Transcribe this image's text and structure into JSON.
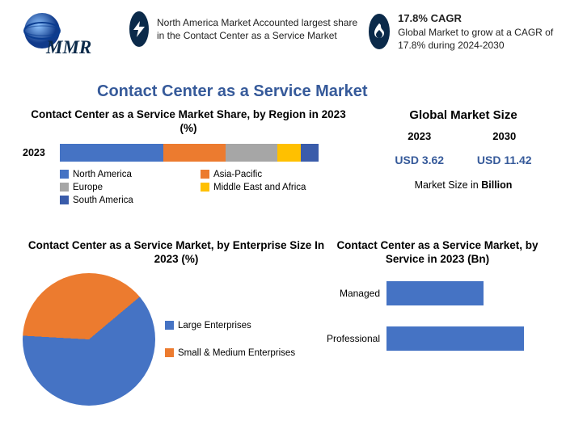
{
  "colors": {
    "brand_blue": "#365a9a",
    "badge_bg": "#0b2a4a",
    "series_blue": "#4573c4",
    "series_orange": "#ec7b2f",
    "series_gray": "#a6a6a6",
    "series_yellow": "#ffc000",
    "series_darkblue": "#4472c4",
    "text": "#222222",
    "bg": "#ffffff"
  },
  "logo": {
    "text": "MMR"
  },
  "insights": {
    "left": {
      "text": "North America Market Accounted largest share in the Contact Center as a Service Market"
    },
    "right": {
      "head": "17.8% CAGR",
      "text": "Global Market to grow at a CAGR of 17.8% during 2024-2030"
    }
  },
  "title": "Contact Center as a Service Market",
  "region": {
    "title": "Contact Center as a Service Market Share, by Region in 2023 (%)",
    "year_label": "2023",
    "segments": [
      {
        "label": "North America",
        "pct": 40,
        "color": "#4573c4"
      },
      {
        "label": "Asia-Pacific",
        "pct": 24,
        "color": "#ec7b2f"
      },
      {
        "label": "Europe",
        "pct": 20,
        "color": "#a6a6a6"
      },
      {
        "label": "Middle East and Africa",
        "pct": 9,
        "color": "#ffc000"
      },
      {
        "label": "South America",
        "pct": 7,
        "color": "#3a5caa"
      }
    ]
  },
  "gms": {
    "title": "Global Market Size",
    "years": [
      "2023",
      "2030"
    ],
    "values": [
      "USD 3.62",
      "USD 11.42"
    ],
    "footer_prefix": "Market Size in ",
    "footer_bold": "Billion"
  },
  "pie": {
    "title": "Contact Center as a Service Market, by Enterprise Size In 2023 (%)",
    "slices": [
      {
        "label": "Large Enterprises",
        "pct": 62,
        "color": "#4573c4"
      },
      {
        "label": "Small & Medium Enterprises",
        "pct": 38,
        "color": "#ec7b2f"
      }
    ],
    "start_angle_deg": 50
  },
  "service": {
    "title": "Contact Center as a Service Market, by Service in 2023 (Bn)",
    "xmax": 2.5,
    "bar_color": "#4573c4",
    "items": [
      {
        "label": "Managed",
        "value": 1.5
      },
      {
        "label": "Professional",
        "value": 2.12
      }
    ]
  }
}
